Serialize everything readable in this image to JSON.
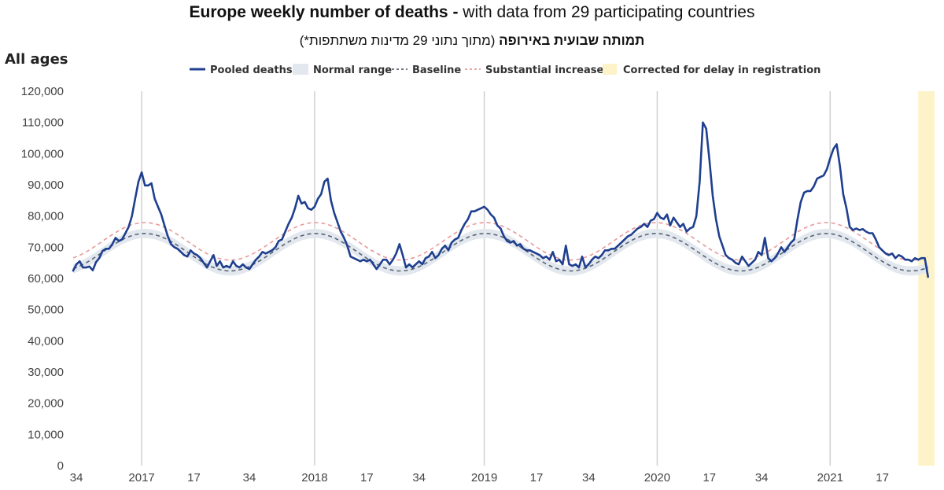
{
  "title": {
    "bold": "Europe weekly number of deaths -",
    "rest": " with data from 29 participating countries"
  },
  "subtitle": {
    "bold": "תמותה שבועית באירופה",
    "rest": " (מתוך נתוני 29 מדינות משתתפות*)"
  },
  "colors": {
    "pooled": "#1f3f8f",
    "normal_range": "#e3e8ef",
    "baseline": "#5a6474",
    "substantial": "#e79a9a",
    "corrected": "#fdf3c8",
    "grid": "#d0d0d0"
  },
  "chart_data": {
    "type": "line",
    "section_label": "All ages",
    "ylim": [
      0,
      120000
    ],
    "yticks": [
      {
        "value": 0,
        "label": "0"
      },
      {
        "value": 10000,
        "label": "10,000"
      },
      {
        "value": 20000,
        "label": "20,000"
      },
      {
        "value": 30000,
        "label": "30,000"
      },
      {
        "value": 40000,
        "label": "40,000"
      },
      {
        "value": 50000,
        "label": "50,000"
      },
      {
        "value": 60000,
        "label": "60,000"
      },
      {
        "value": 70000,
        "label": "70,000"
      },
      {
        "value": 80000,
        "label": "80,000"
      },
      {
        "value": 90000,
        "label": "90,000"
      },
      {
        "value": 100000,
        "label": "100,000"
      },
      {
        "value": 110000,
        "label": "110,000"
      },
      {
        "value": 120000,
        "label": "120,000"
      }
    ],
    "x_start_label": "2016-W33",
    "x_range_weeks": [
      0,
      264
    ],
    "xticks": [
      {
        "week": 1,
        "label": "34",
        "major": false
      },
      {
        "week": 21,
        "label": "2017",
        "major": true
      },
      {
        "week": 37,
        "label": "17",
        "major": false
      },
      {
        "week": 54,
        "label": "34",
        "major": false
      },
      {
        "week": 74,
        "label": "2018",
        "major": true
      },
      {
        "week": 90,
        "label": "17",
        "major": false
      },
      {
        "week": 106,
        "label": "34",
        "major": false
      },
      {
        "week": 126,
        "label": "2019",
        "major": true
      },
      {
        "week": 142,
        "label": "17",
        "major": false
      },
      {
        "week": 158,
        "label": "34",
        "major": false
      },
      {
        "week": 179,
        "label": "2020",
        "major": true
      },
      {
        "week": 195,
        "label": "17",
        "major": false
      },
      {
        "week": 211,
        "label": "34",
        "major": false
      },
      {
        "week": 232,
        "label": "2021",
        "major": true
      },
      {
        "week": 248,
        "label": "17",
        "major": false
      }
    ],
    "legend": [
      {
        "key": "pooled",
        "label": "Pooled deaths",
        "style": "solid"
      },
      {
        "key": "normal_range",
        "label": "Normal range",
        "style": "band"
      },
      {
        "key": "baseline",
        "label": "Baseline",
        "style": "dashed"
      },
      {
        "key": "substantial",
        "label": "Substantial increase",
        "style": "dashed"
      },
      {
        "key": "corrected",
        "label": "Corrected for delay in registration",
        "style": "band"
      }
    ],
    "corrected_weeks": [
      259,
      264
    ],
    "baseline_model": {
      "mean": 68400,
      "amplitude": 6000,
      "peak_week": 22,
      "period_weeks": 52.18
    },
    "normal_range_halfwidth": 1500,
    "substantial_offset": 3500,
    "pooled_deaths": [
      {
        "week": 0,
        "value": 62500
      },
      {
        "week": 1,
        "value": 64500
      },
      {
        "week": 2,
        "value": 65500
      },
      {
        "week": 3,
        "value": 63500
      },
      {
        "week": 4,
        "value": 63500
      },
      {
        "week": 5,
        "value": 63800
      },
      {
        "week": 6,
        "value": 62600
      },
      {
        "week": 7,
        "value": 65200
      },
      {
        "week": 8,
        "value": 66500
      },
      {
        "week": 9,
        "value": 68800
      },
      {
        "week": 10,
        "value": 69500
      },
      {
        "week": 11,
        "value": 69500
      },
      {
        "week": 12,
        "value": 71000
      },
      {
        "week": 13,
        "value": 73000
      },
      {
        "week": 14,
        "value": 72000
      },
      {
        "week": 15,
        "value": 72500
      },
      {
        "week": 16,
        "value": 74500
      },
      {
        "week": 17,
        "value": 76500
      },
      {
        "week": 18,
        "value": 80000
      },
      {
        "week": 19,
        "value": 85500
      },
      {
        "week": 20,
        "value": 91000
      },
      {
        "week": 21,
        "value": 94000
      },
      {
        "week": 22,
        "value": 89800
      },
      {
        "week": 23,
        "value": 89800
      },
      {
        "week": 24,
        "value": 90500
      },
      {
        "week": 25,
        "value": 85500
      },
      {
        "week": 26,
        "value": 83000
      },
      {
        "week": 27,
        "value": 80500
      },
      {
        "week": 28,
        "value": 77000
      },
      {
        "week": 29,
        "value": 73500
      },
      {
        "week": 30,
        "value": 71000
      },
      {
        "week": 31,
        "value": 70000
      },
      {
        "week": 32,
        "value": 69500
      },
      {
        "week": 33,
        "value": 68500
      },
      {
        "week": 34,
        "value": 67500
      },
      {
        "week": 35,
        "value": 67000
      },
      {
        "week": 36,
        "value": 69000
      },
      {
        "week": 37,
        "value": 68000
      },
      {
        "week": 38,
        "value": 67500
      },
      {
        "week": 39,
        "value": 66500
      },
      {
        "week": 40,
        "value": 65000
      },
      {
        "week": 41,
        "value": 63500
      },
      {
        "week": 42,
        "value": 65500
      },
      {
        "week": 43,
        "value": 67500
      },
      {
        "week": 44,
        "value": 64000
      },
      {
        "week": 45,
        "value": 65500
      },
      {
        "week": 46,
        "value": 63500
      },
      {
        "week": 47,
        "value": 64000
      },
      {
        "week": 48,
        "value": 63500
      },
      {
        "week": 49,
        "value": 65500
      },
      {
        "week": 50,
        "value": 64000
      },
      {
        "week": 51,
        "value": 63500
      },
      {
        "week": 52,
        "value": 64500
      },
      {
        "week": 53,
        "value": 63500
      },
      {
        "week": 54,
        "value": 63000
      },
      {
        "week": 55,
        "value": 64500
      },
      {
        "week": 56,
        "value": 66000
      },
      {
        "week": 57,
        "value": 67000
      },
      {
        "week": 58,
        "value": 68500
      },
      {
        "week": 59,
        "value": 68000
      },
      {
        "week": 60,
        "value": 68500
      },
      {
        "week": 61,
        "value": 69000
      },
      {
        "week": 62,
        "value": 70000
      },
      {
        "week": 63,
        "value": 72000
      },
      {
        "week": 64,
        "value": 72500
      },
      {
        "week": 65,
        "value": 75000
      },
      {
        "week": 66,
        "value": 77500
      },
      {
        "week": 67,
        "value": 79500
      },
      {
        "week": 68,
        "value": 82500
      },
      {
        "week": 69,
        "value": 86500
      },
      {
        "week": 70,
        "value": 84000
      },
      {
        "week": 71,
        "value": 84500
      },
      {
        "week": 72,
        "value": 82500
      },
      {
        "week": 73,
        "value": 82000
      },
      {
        "week": 74,
        "value": 83000
      },
      {
        "week": 75,
        "value": 85500
      },
      {
        "week": 76,
        "value": 87000
      },
      {
        "week": 77,
        "value": 91000
      },
      {
        "week": 78,
        "value": 92000
      },
      {
        "week": 79,
        "value": 85000
      },
      {
        "week": 80,
        "value": 81000
      },
      {
        "week": 81,
        "value": 78000
      },
      {
        "week": 82,
        "value": 75000
      },
      {
        "week": 83,
        "value": 73000
      },
      {
        "week": 84,
        "value": 70500
      },
      {
        "week": 85,
        "value": 67000
      },
      {
        "week": 86,
        "value": 66500
      },
      {
        "week": 87,
        "value": 66000
      },
      {
        "week": 88,
        "value": 65500
      },
      {
        "week": 89,
        "value": 66000
      },
      {
        "week": 90,
        "value": 65500
      },
      {
        "week": 91,
        "value": 66000
      },
      {
        "week": 92,
        "value": 64500
      },
      {
        "week": 93,
        "value": 63000
      },
      {
        "week": 94,
        "value": 64500
      },
      {
        "week": 95,
        "value": 66000
      },
      {
        "week": 96,
        "value": 66000
      },
      {
        "week": 97,
        "value": 64500
      },
      {
        "week": 98,
        "value": 66000
      },
      {
        "week": 99,
        "value": 68000
      },
      {
        "week": 100,
        "value": 71000
      },
      {
        "week": 101,
        "value": 67500
      },
      {
        "week": 102,
        "value": 63500
      },
      {
        "week": 103,
        "value": 64500
      },
      {
        "week": 104,
        "value": 63500
      },
      {
        "week": 105,
        "value": 64500
      },
      {
        "week": 106,
        "value": 65500
      },
      {
        "week": 107,
        "value": 64500
      },
      {
        "week": 108,
        "value": 66500
      },
      {
        "week": 109,
        "value": 67000
      },
      {
        "week": 110,
        "value": 68500
      },
      {
        "week": 111,
        "value": 66500
      },
      {
        "week": 112,
        "value": 67500
      },
      {
        "week": 113,
        "value": 69500
      },
      {
        "week": 114,
        "value": 70500
      },
      {
        "week": 115,
        "value": 69000
      },
      {
        "week": 116,
        "value": 71500
      },
      {
        "week": 117,
        "value": 72500
      },
      {
        "week": 118,
        "value": 73000
      },
      {
        "week": 119,
        "value": 75500
      },
      {
        "week": 120,
        "value": 77500
      },
      {
        "week": 121,
        "value": 79000
      },
      {
        "week": 122,
        "value": 81500
      },
      {
        "week": 123,
        "value": 81500
      },
      {
        "week": 124,
        "value": 82000
      },
      {
        "week": 125,
        "value": 82500
      },
      {
        "week": 126,
        "value": 83000
      },
      {
        "week": 127,
        "value": 82000
      },
      {
        "week": 128,
        "value": 80500
      },
      {
        "week": 129,
        "value": 79500
      },
      {
        "week": 130,
        "value": 77000
      },
      {
        "week": 131,
        "value": 76000
      },
      {
        "week": 132,
        "value": 73500
      },
      {
        "week": 133,
        "value": 72000
      },
      {
        "week": 134,
        "value": 71500
      },
      {
        "week": 135,
        "value": 72000
      },
      {
        "week": 136,
        "value": 70500
      },
      {
        "week": 137,
        "value": 71000
      },
      {
        "week": 138,
        "value": 69500
      },
      {
        "week": 139,
        "value": 69000
      },
      {
        "week": 140,
        "value": 69000
      },
      {
        "week": 141,
        "value": 68500
      },
      {
        "week": 142,
        "value": 68000
      },
      {
        "week": 143,
        "value": 67500
      },
      {
        "week": 144,
        "value": 66500
      },
      {
        "week": 145,
        "value": 67000
      },
      {
        "week": 146,
        "value": 66000
      },
      {
        "week": 147,
        "value": 68500
      },
      {
        "week": 148,
        "value": 65500
      },
      {
        "week": 149,
        "value": 66000
      },
      {
        "week": 150,
        "value": 64500
      },
      {
        "week": 151,
        "value": 70500
      },
      {
        "week": 152,
        "value": 64500
      },
      {
        "week": 153,
        "value": 64000
      },
      {
        "week": 154,
        "value": 64500
      },
      {
        "week": 155,
        "value": 63500
      },
      {
        "week": 156,
        "value": 67000
      },
      {
        "week": 157,
        "value": 63500
      },
      {
        "week": 158,
        "value": 64500
      },
      {
        "week": 159,
        "value": 66000
      },
      {
        "week": 160,
        "value": 67000
      },
      {
        "week": 161,
        "value": 66500
      },
      {
        "week": 162,
        "value": 67500
      },
      {
        "week": 163,
        "value": 69000
      },
      {
        "week": 164,
        "value": 69000
      },
      {
        "week": 165,
        "value": 69500
      },
      {
        "week": 166,
        "value": 69500
      },
      {
        "week": 167,
        "value": 70500
      },
      {
        "week": 168,
        "value": 71500
      },
      {
        "week": 169,
        "value": 72500
      },
      {
        "week": 170,
        "value": 73500
      },
      {
        "week": 171,
        "value": 74000
      },
      {
        "week": 172,
        "value": 75000
      },
      {
        "week": 173,
        "value": 76000
      },
      {
        "week": 174,
        "value": 76500
      },
      {
        "week": 175,
        "value": 77500
      },
      {
        "week": 176,
        "value": 76500
      },
      {
        "week": 177,
        "value": 78500
      },
      {
        "week": 178,
        "value": 79000
      },
      {
        "week": 179,
        "value": 81000
      },
      {
        "week": 180,
        "value": 79500
      },
      {
        "week": 181,
        "value": 79000
      },
      {
        "week": 182,
        "value": 80500
      },
      {
        "week": 183,
        "value": 77000
      },
      {
        "week": 184,
        "value": 79500
      },
      {
        "week": 185,
        "value": 78000
      },
      {
        "week": 186,
        "value": 76500
      },
      {
        "week": 187,
        "value": 77500
      },
      {
        "week": 188,
        "value": 75000
      },
      {
        "week": 189,
        "value": 76000
      },
      {
        "week": 190,
        "value": 76500
      },
      {
        "week": 191,
        "value": 80000
      },
      {
        "week": 192,
        "value": 91000
      },
      {
        "week": 193,
        "value": 110000
      },
      {
        "week": 194,
        "value": 108000
      },
      {
        "week": 195,
        "value": 98000
      },
      {
        "week": 196,
        "value": 86500
      },
      {
        "week": 197,
        "value": 79000
      },
      {
        "week": 198,
        "value": 73500
      },
      {
        "week": 199,
        "value": 70500
      },
      {
        "week": 200,
        "value": 67500
      },
      {
        "week": 201,
        "value": 66500
      },
      {
        "week": 202,
        "value": 66000
      },
      {
        "week": 203,
        "value": 65000
      },
      {
        "week": 204,
        "value": 64500
      },
      {
        "week": 205,
        "value": 67000
      },
      {
        "week": 206,
        "value": 65500
      },
      {
        "week": 207,
        "value": 64000
      },
      {
        "week": 208,
        "value": 65000
      },
      {
        "week": 209,
        "value": 66000
      },
      {
        "week": 210,
        "value": 68500
      },
      {
        "week": 211,
        "value": 67500
      },
      {
        "week": 212,
        "value": 73000
      },
      {
        "week": 213,
        "value": 66500
      },
      {
        "week": 214,
        "value": 65500
      },
      {
        "week": 215,
        "value": 66500
      },
      {
        "week": 216,
        "value": 68000
      },
      {
        "week": 217,
        "value": 70000
      },
      {
        "week": 218,
        "value": 68500
      },
      {
        "week": 219,
        "value": 70000
      },
      {
        "week": 220,
        "value": 71500
      },
      {
        "week": 221,
        "value": 72500
      },
      {
        "week": 222,
        "value": 79000
      },
      {
        "week": 223,
        "value": 84500
      },
      {
        "week": 224,
        "value": 87500
      },
      {
        "week": 225,
        "value": 88000
      },
      {
        "week": 226,
        "value": 88000
      },
      {
        "week": 227,
        "value": 89500
      },
      {
        "week": 228,
        "value": 92000
      },
      {
        "week": 229,
        "value": 92500
      },
      {
        "week": 230,
        "value": 93000
      },
      {
        "week": 231,
        "value": 95000
      },
      {
        "week": 232,
        "value": 98500
      },
      {
        "week": 233,
        "value": 101500
      },
      {
        "week": 234,
        "value": 103000
      },
      {
        "week": 235,
        "value": 96000
      },
      {
        "week": 236,
        "value": 87000
      },
      {
        "week": 237,
        "value": 82500
      },
      {
        "week": 238,
        "value": 76500
      },
      {
        "week": 239,
        "value": 75500
      },
      {
        "week": 240,
        "value": 76000
      },
      {
        "week": 241,
        "value": 75500
      },
      {
        "week": 242,
        "value": 75800
      },
      {
        "week": 243,
        "value": 75000
      },
      {
        "week": 244,
        "value": 74500
      },
      {
        "week": 245,
        "value": 74500
      },
      {
        "week": 246,
        "value": 72500
      },
      {
        "week": 247,
        "value": 70000
      },
      {
        "week": 248,
        "value": 69000
      },
      {
        "week": 249,
        "value": 68000
      },
      {
        "week": 250,
        "value": 67500
      },
      {
        "week": 251,
        "value": 68000
      },
      {
        "week": 252,
        "value": 66500
      },
      {
        "week": 253,
        "value": 67500
      },
      {
        "week": 254,
        "value": 67000
      },
      {
        "week": 255,
        "value": 66000
      },
      {
        "week": 256,
        "value": 66000
      },
      {
        "week": 257,
        "value": 65500
      },
      {
        "week": 258,
        "value": 66500
      },
      {
        "week": 259,
        "value": 66000
      },
      {
        "week": 260,
        "value": 66500
      },
      {
        "week": 261,
        "value": 66500
      },
      {
        "week": 262,
        "value": 60500
      }
    ]
  }
}
